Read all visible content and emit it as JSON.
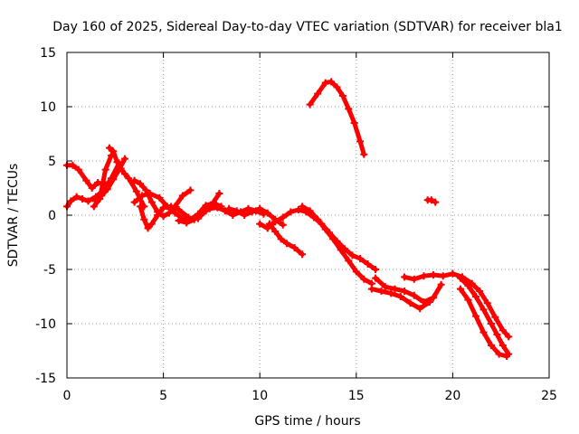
{
  "chart_data": {
    "type": "scatter",
    "title": "Day 160 of 2025, Sidereal Day-to-day VTEC variation (SDTVAR) for receiver bla1",
    "xlabel": "GPS time / hours",
    "ylabel": "SDTVAR / TECUs",
    "xlim": [
      0,
      25
    ],
    "ylim": [
      -15,
      15
    ],
    "xticks": [
      0,
      5,
      10,
      15,
      20,
      25
    ],
    "yticks": [
      -15,
      -10,
      -5,
      0,
      5,
      10,
      15
    ],
    "xtick_labels": [
      "0",
      "5",
      "10",
      "15",
      "20",
      "25"
    ],
    "ytick_labels": [
      "-15",
      "-10",
      "-5",
      "0",
      "5",
      "10",
      "15"
    ],
    "grid": true,
    "legend": "none",
    "series_color": "#ff0000",
    "series": [
      {
        "name": "arc-1",
        "x": [
          0.0,
          0.3,
          0.6,
          1.0,
          1.3,
          1.6,
          2.0
        ],
        "y": [
          4.6,
          4.6,
          4.2,
          3.2,
          2.5,
          3.0,
          2.8
        ]
      },
      {
        "name": "arc-2",
        "x": [
          0.0,
          0.2,
          0.5,
          0.8,
          1.1,
          1.5,
          1.9,
          2.3,
          2.7
        ],
        "y": [
          0.8,
          1.3,
          1.7,
          1.5,
          1.3,
          1.7,
          2.3,
          3.4,
          4.8
        ]
      },
      {
        "name": "arc-3",
        "x": [
          1.4,
          1.7,
          2.0,
          2.3
        ],
        "y": [
          0.8,
          1.5,
          4.2,
          5.5
        ]
      },
      {
        "name": "arc-4",
        "x": [
          2.2,
          2.4,
          2.6,
          2.8,
          3.0,
          3.2,
          3.6,
          4.0
        ],
        "y": [
          6.2,
          5.9,
          4.9,
          4.3,
          3.8,
          3.4,
          2.2,
          0.8
        ]
      },
      {
        "name": "arc-5",
        "x": [
          1.5,
          1.8,
          2.1,
          2.4,
          2.7,
          3.0
        ],
        "y": [
          1.3,
          1.8,
          2.4,
          3.3,
          4.2,
          5.2
        ]
      },
      {
        "name": "arc-6",
        "x": [
          3.5,
          3.8,
          4.1,
          4.4,
          4.7,
          5.0,
          5.3,
          5.6,
          6.0,
          6.4
        ],
        "y": [
          3.2,
          2.9,
          2.3,
          1.2,
          0.3,
          -0.1,
          0.2,
          0.8,
          1.8,
          2.3
        ]
      },
      {
        "name": "arc-7",
        "x": [
          3.8,
          4.0,
          4.2,
          4.4,
          4.7,
          5.0,
          5.4,
          5.8,
          6.3
        ],
        "y": [
          0.8,
          -0.4,
          -1.2,
          -0.8,
          0.0,
          0.7,
          0.8,
          0.5,
          -0.2
        ]
      },
      {
        "name": "arc-8",
        "x": [
          3.5,
          3.9,
          4.3,
          4.8,
          5.2,
          5.6,
          6.0,
          6.4,
          6.8,
          7.2,
          7.6,
          8.0
        ],
        "y": [
          1.2,
          1.8,
          2.0,
          1.6,
          0.8,
          0.2,
          -0.3,
          -0.4,
          0.1,
          0.9,
          1.1,
          0.8
        ]
      },
      {
        "name": "arc-9",
        "x": [
          5.8,
          6.2,
          6.6,
          7.0,
          7.4,
          7.8,
          8.2,
          8.6,
          9.0,
          9.4,
          9.8,
          10.2
        ],
        "y": [
          -0.5,
          -0.7,
          -0.4,
          0.2,
          0.6,
          0.7,
          0.4,
          0.0,
          0.3,
          0.6,
          0.4,
          0.1
        ]
      },
      {
        "name": "arc-10",
        "x": [
          6.8,
          7.2,
          7.6,
          7.9
        ],
        "y": [
          -0.3,
          0.4,
          1.2,
          2.0
        ]
      },
      {
        "name": "arc-11",
        "x": [
          8.4,
          8.8,
          9.2,
          9.6,
          10.0,
          10.4,
          10.8,
          11.2
        ],
        "y": [
          0.6,
          0.4,
          0.0,
          0.3,
          0.6,
          0.2,
          -0.4,
          -0.9
        ]
      },
      {
        "name": "arc-12",
        "x": [
          10.0,
          10.4,
          10.8,
          11.2,
          11.6,
          12.0,
          12.4,
          12.8,
          13.2,
          13.6,
          14.0,
          14.4,
          14.8,
          15.2,
          15.6,
          16.0
        ],
        "y": [
          -0.8,
          -1.2,
          -0.6,
          -0.2,
          0.3,
          0.5,
          0.3,
          -0.2,
          -0.8,
          -1.6,
          -2.4,
          -3.1,
          -3.7,
          -4.0,
          -4.5,
          -5.0
        ]
      },
      {
        "name": "arc-13",
        "x": [
          10.5,
          10.8,
          11.1,
          11.4,
          11.8,
          12.2
        ],
        "y": [
          -0.8,
          -1.5,
          -2.2,
          -2.6,
          -3.0,
          -3.6
        ]
      },
      {
        "name": "arc-14",
        "x": [
          12.2,
          12.6,
          13.0,
          13.4,
          13.8,
          14.2,
          14.6,
          15.0,
          15.4,
          15.8
        ],
        "y": [
          0.8,
          0.4,
          -0.4,
          -1.3,
          -2.2,
          -3.2,
          -4.2,
          -5.2,
          -5.9,
          -6.3
        ]
      },
      {
        "name": "arc-15",
        "x": [
          12.6,
          13.0,
          13.4,
          13.7,
          14.0,
          14.3,
          14.6,
          14.9,
          15.2,
          15.4
        ],
        "y": [
          10.2,
          11.2,
          12.2,
          12.3,
          11.8,
          11.0,
          9.8,
          8.5,
          6.8,
          5.6
        ]
      },
      {
        "name": "arc-16",
        "x": [
          18.7,
          18.9,
          19.1
        ],
        "y": [
          1.4,
          1.4,
          1.2
        ]
      },
      {
        "name": "arc-17",
        "x": [
          16.0,
          16.5,
          17.0,
          17.5,
          18.0,
          18.5,
          19.0,
          19.4
        ],
        "y": [
          -5.8,
          -6.6,
          -6.8,
          -7.0,
          -7.4,
          -8.0,
          -7.6,
          -6.4
        ]
      },
      {
        "name": "arc-18",
        "x": [
          15.8,
          16.3,
          16.8,
          17.3,
          17.8,
          18.3,
          18.8
        ],
        "y": [
          -6.8,
          -7.0,
          -7.2,
          -7.5,
          -8.1,
          -8.6,
          -8.0
        ]
      },
      {
        "name": "arc-19",
        "x": [
          17.5,
          18.0,
          18.5,
          19.0,
          19.5,
          20.0,
          20.5,
          21.0,
          21.4,
          21.8,
          22.2,
          22.6,
          22.9
        ],
        "y": [
          -5.7,
          -5.9,
          -5.6,
          -5.5,
          -5.6,
          -5.4,
          -5.7,
          -6.3,
          -7.0,
          -8.1,
          -9.4,
          -10.6,
          -11.2
        ]
      },
      {
        "name": "arc-20",
        "x": [
          20.4,
          20.8,
          21.2,
          21.6,
          22.0,
          22.3,
          22.6,
          22.9
        ],
        "y": [
          -5.8,
          -6.5,
          -7.5,
          -8.7,
          -10.0,
          -11.0,
          -12.0,
          -12.8
        ]
      },
      {
        "name": "arc-21",
        "x": [
          20.4,
          20.8,
          21.2,
          21.6,
          22.0,
          22.4,
          22.8
        ],
        "y": [
          -6.8,
          -7.8,
          -9.3,
          -10.8,
          -12.0,
          -12.8,
          -13.0
        ]
      }
    ]
  }
}
